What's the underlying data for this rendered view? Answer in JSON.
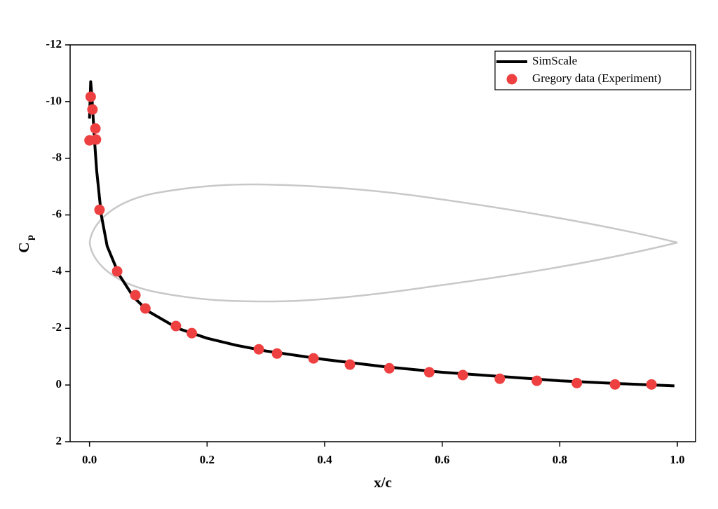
{
  "chart_data": {
    "type": "line",
    "xlabel": "x/c",
    "ylabel": "C",
    "ylabel_subscript": "p",
    "xlim": [
      -0.033,
      1.031
    ],
    "ylim": [
      -12,
      2
    ],
    "y_inverted": true,
    "xticks": [
      {
        "value": 0,
        "label": "0.0"
      },
      0.2,
      0.4,
      0.6,
      0.8,
      {
        "value": 1,
        "label": "1.0"
      }
    ],
    "yticks": [
      -12,
      -10,
      -8,
      -6,
      -4,
      -2,
      0,
      2
    ],
    "legend": "top-right",
    "series": [
      {
        "name": "SimScale",
        "color": "#000000",
        "style": "line",
        "x": [
          0.0,
          0.002,
          0.004,
          0.008,
          0.012,
          0.02,
          0.03,
          0.05,
          0.075,
          0.1,
          0.15,
          0.2,
          0.25,
          0.3,
          0.4,
          0.5,
          0.6,
          0.7,
          0.8,
          0.9,
          0.995
        ],
        "values": [
          -9.4,
          -10.7,
          -10.2,
          -8.8,
          -7.6,
          -6.0,
          -4.9,
          -3.9,
          -3.1,
          -2.6,
          -2.0,
          -1.65,
          -1.4,
          -1.2,
          -0.9,
          -0.65,
          -0.45,
          -0.3,
          -0.15,
          -0.05,
          0.03
        ]
      },
      {
        "name": "Gregory data (Experiment)",
        "color": "#ee4040",
        "style": "marker",
        "x": [
          0.0,
          0.002,
          0.005,
          0.01,
          0.011,
          0.017,
          0.047,
          0.078,
          0.095,
          0.147,
          0.174,
          0.288,
          0.319,
          0.381,
          0.443,
          0.51,
          0.578,
          0.635,
          0.698,
          0.761,
          0.829,
          0.894,
          0.956
        ],
        "values": [
          -8.63,
          -10.17,
          -9.72,
          -9.05,
          -8.66,
          -6.18,
          -4.01,
          -3.17,
          -2.7,
          -2.08,
          -1.83,
          -1.26,
          -1.11,
          -0.94,
          -0.72,
          -0.59,
          -0.45,
          -0.35,
          -0.22,
          -0.15,
          -0.07,
          -0.02,
          -0.02
        ]
      }
    ]
  }
}
